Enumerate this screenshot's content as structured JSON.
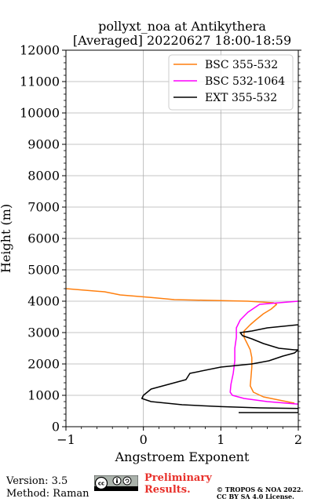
{
  "chart_data": {
    "type": "line",
    "title": "pollyxt_noa at Antikythera",
    "subtitle": "[Averaged] 20220627 18:00-18:59",
    "xlabel": "Angstroem Exponent",
    "ylabel": "Height (m)",
    "xlim": [
      -1,
      2
    ],
    "ylim": [
      0,
      12000
    ],
    "xticks": [
      "−1",
      "0",
      "1",
      "2"
    ],
    "yticks": [
      "0",
      "1000",
      "2000",
      "3000",
      "4000",
      "5000",
      "6000",
      "7000",
      "8000",
      "9000",
      "10000",
      "11000",
      "12000"
    ],
    "grid": true,
    "legend_position": "top-right",
    "series": [
      {
        "name": "BSC 355-532",
        "color": "#ff7f0e",
        "points": [
          [
            1.95,
            750
          ],
          [
            1.75,
            850
          ],
          [
            1.55,
            950
          ],
          [
            1.42,
            1100
          ],
          [
            1.38,
            1300
          ],
          [
            1.39,
            1600
          ],
          [
            1.4,
            1900
          ],
          [
            1.4,
            2200
          ],
          [
            1.38,
            2450
          ],
          [
            1.34,
            2650
          ],
          [
            1.3,
            2850
          ],
          [
            1.3,
            3050
          ],
          [
            1.38,
            3250
          ],
          [
            1.45,
            3400
          ],
          [
            1.55,
            3600
          ],
          [
            1.65,
            3750
          ],
          [
            1.72,
            3900
          ],
          [
            1.68,
            3950
          ],
          [
            1.35,
            4000
          ],
          [
            0.4,
            4050
          ],
          [
            0.1,
            4120
          ],
          [
            -0.3,
            4200
          ],
          [
            -0.5,
            4300
          ],
          [
            -1,
            4400
          ]
        ]
      },
      {
        "name": "BSC 532-1064",
        "color": "#ff00ff",
        "points": [
          [
            2.0,
            4000
          ],
          [
            1.5,
            3900
          ],
          [
            1.35,
            3650
          ],
          [
            1.25,
            3400
          ],
          [
            1.2,
            3150
          ],
          [
            1.2,
            2850
          ],
          [
            1.18,
            2500
          ],
          [
            1.18,
            2100
          ],
          [
            1.16,
            1700
          ],
          [
            1.13,
            1350
          ],
          [
            1.12,
            1100
          ],
          [
            1.15,
            1000
          ],
          [
            1.3,
            900
          ],
          [
            1.6,
            800
          ],
          [
            2.0,
            720
          ]
        ]
      },
      {
        "name": "EXT 355-532",
        "color": "#000000",
        "points": [
          [
            1.23,
            450
          ],
          [
            2.0,
            450
          ],
          [
            2.0,
            3250
          ],
          [
            1.6,
            3150
          ],
          [
            1.4,
            3050
          ],
          [
            1.25,
            3000
          ],
          [
            1.28,
            2900
          ],
          [
            1.4,
            2800
          ],
          [
            1.55,
            2650
          ],
          [
            1.75,
            2500
          ],
          [
            1.95,
            2450
          ],
          [
            2.0,
            2450
          ],
          [
            1.95,
            2350
          ],
          [
            1.8,
            2250
          ],
          [
            1.62,
            2100
          ],
          [
            1.4,
            2000
          ],
          [
            1.0,
            1900
          ],
          [
            0.6,
            1700
          ],
          [
            0.55,
            1500
          ],
          [
            0.4,
            1400
          ],
          [
            0.25,
            1300
          ],
          [
            0.1,
            1200
          ],
          [
            0.05,
            1100
          ],
          [
            0.0,
            1000
          ],
          [
            -0.02,
            900
          ],
          [
            0.1,
            800
          ],
          [
            0.5,
            700
          ],
          [
            1.0,
            640
          ],
          [
            1.5,
            600
          ],
          [
            2.0,
            580
          ]
        ]
      }
    ]
  },
  "footer": {
    "version": "Version: 3.5",
    "method": "Method: Raman",
    "preliminary_line1": "Preliminary",
    "preliminary_line2": "Results.",
    "copyright_line1": "© TROPOS & NOA 2022.",
    "copyright_line2": "CC BY SA 4.0 License."
  }
}
